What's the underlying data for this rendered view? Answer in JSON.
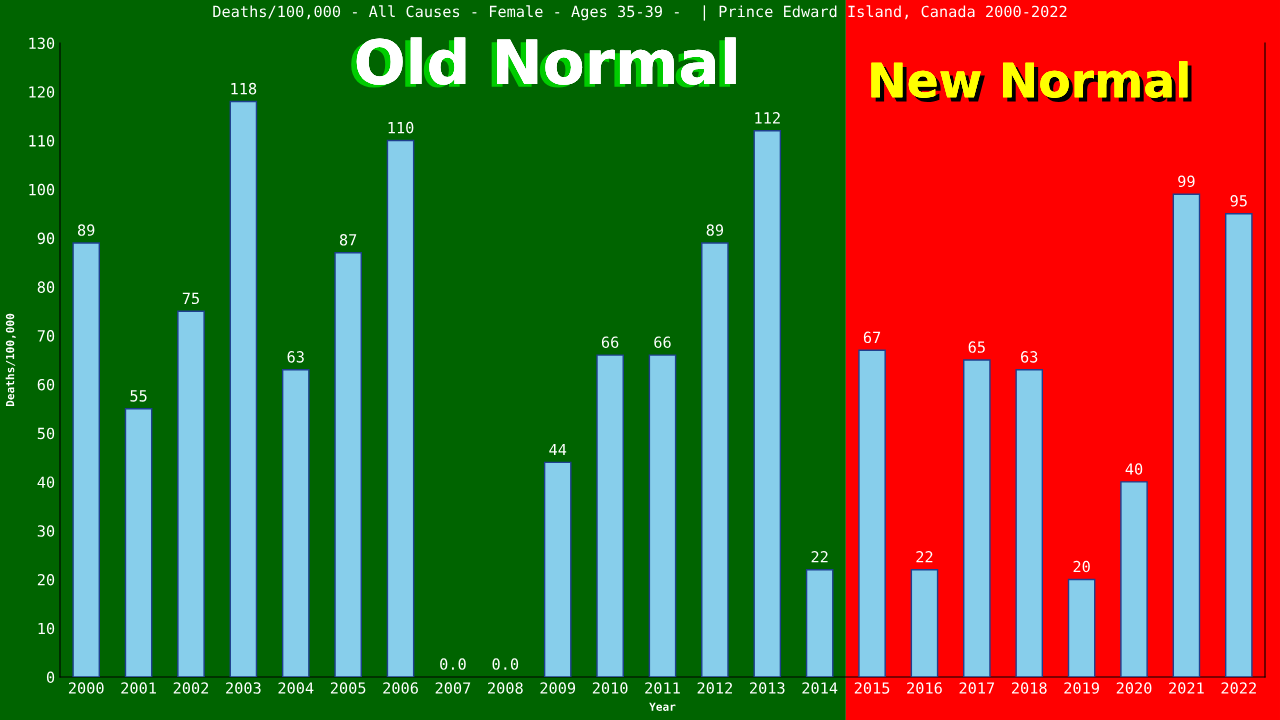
{
  "chart_data": {
    "type": "bar",
    "title": "Deaths/100,000 - All Causes - Female - Ages 35-39 -  | Prince Edward Island, Canada 2000-2022",
    "xlabel": "Year",
    "ylabel": "Deaths/100,000",
    "categories": [
      "2000",
      "2001",
      "2002",
      "2003",
      "2004",
      "2005",
      "2006",
      "2007",
      "2008",
      "2009",
      "2010",
      "2011",
      "2012",
      "2013",
      "2014",
      "2015",
      "2016",
      "2017",
      "2018",
      "2019",
      "2020",
      "2021",
      "2022"
    ],
    "values": [
      89,
      55,
      75,
      118,
      63,
      87,
      110,
      0,
      0,
      44,
      66,
      66,
      89,
      112,
      22,
      67,
      22,
      65,
      63,
      20,
      40,
      99,
      95
    ],
    "value_labels": [
      "89",
      "55",
      "75",
      "118",
      "63",
      "87",
      "110",
      "0.0",
      "0.0",
      "44",
      "66",
      "66",
      "89",
      "112",
      "22",
      "67",
      "22",
      "65",
      "63",
      "20",
      "40",
      "99",
      "95"
    ],
    "color": "#87ceeb",
    "ylim": [
      0,
      130
    ],
    "yticks": [
      0,
      10,
      20,
      30,
      40,
      50,
      60,
      70,
      80,
      90,
      100,
      110,
      120,
      130
    ],
    "grid": false,
    "bands": [
      {
        "axis": "x",
        "from": "2000",
        "to": "2014",
        "label": "Old Normal",
        "color": "#006400"
      },
      {
        "axis": "x",
        "from": "2015",
        "to": "2022",
        "label": "New Normal",
        "color": "#ff0000"
      }
    ]
  }
}
